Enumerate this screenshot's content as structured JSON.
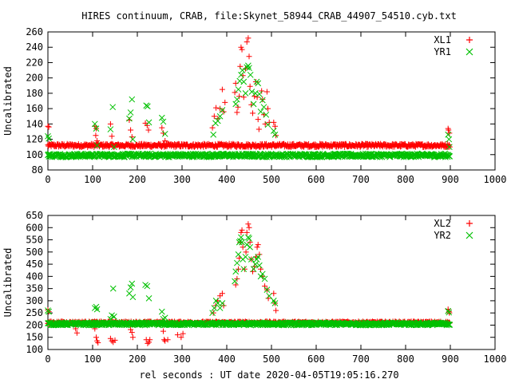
{
  "title": "HIRES continuum, CRAB, file:Skynet_58944_CRAB_44907_54510.cyb.txt",
  "xlabel": "rel seconds : UT date 2020-04-05T19:05:16.270",
  "colors": {
    "red": "#ff0000",
    "green": "#00c000"
  },
  "chart_data": [
    {
      "type": "scatter",
      "ylabel": "Uncalibrated",
      "xlim": [
        0,
        1000
      ],
      "ylim": [
        80,
        260
      ],
      "xticks": [
        0,
        100,
        200,
        300,
        400,
        500,
        600,
        700,
        800,
        900,
        1000
      ],
      "yticks": [
        80,
        100,
        120,
        140,
        160,
        180,
        200,
        220,
        240,
        260
      ],
      "legend_position": "top-right",
      "series": [
        {
          "name": "XL1",
          "marker": "plus",
          "color": "#ff0000",
          "baseline": 112,
          "points": [
            [
              0,
              137
            ],
            [
              2,
              136
            ],
            [
              105,
              137
            ],
            [
              107,
              125
            ],
            [
              108,
              134
            ],
            [
              110,
              118
            ],
            [
              140,
              140
            ],
            [
              143,
              124
            ],
            [
              147,
              112
            ],
            [
              182,
              145
            ],
            [
              185,
              132
            ],
            [
              188,
              123
            ],
            [
              218,
              141
            ],
            [
              222,
              138
            ],
            [
              225,
              132
            ],
            [
              255,
              135
            ],
            [
              258,
              128
            ],
            [
              262,
              118
            ],
            [
              368,
              135
            ],
            [
              372,
              150
            ],
            [
              376,
              161
            ],
            [
              380,
              147
            ],
            [
              385,
              160
            ],
            [
              390,
              185
            ],
            [
              393,
              156
            ],
            [
              396,
              168
            ],
            [
              418,
              181
            ],
            [
              420,
              193
            ],
            [
              423,
              155
            ],
            [
              425,
              162
            ],
            [
              428,
              176
            ],
            [
              430,
              215
            ],
            [
              432,
              240
            ],
            [
              434,
              237
            ],
            [
              436,
              203
            ],
            [
              438,
              175
            ],
            [
              442,
              212
            ],
            [
              445,
              247
            ],
            [
              448,
              252
            ],
            [
              450,
              228
            ],
            [
              452,
              189
            ],
            [
              455,
              165
            ],
            [
              458,
              154
            ],
            [
              462,
              176
            ],
            [
              465,
              195
            ],
            [
              468,
              175
            ],
            [
              470,
              146
            ],
            [
              472,
              133
            ],
            [
              478,
              183
            ],
            [
              480,
              172
            ],
            [
              483,
              152
            ],
            [
              486,
              140
            ],
            [
              490,
              182
            ],
            [
              492,
              160
            ],
            [
              495,
              142
            ],
            [
              505,
              142
            ],
            [
              508,
              137
            ],
            [
              510,
              125
            ],
            [
              895,
              134
            ],
            [
              896,
              132
            ],
            [
              898,
              128
            ]
          ]
        },
        {
          "name": "YR1",
          "marker": "cross",
          "color": "#00c000",
          "baseline": 99,
          "points": [
            [
              0,
              124
            ],
            [
              2,
              121
            ],
            [
              105,
              140
            ],
            [
              108,
              134
            ],
            [
              110,
              112
            ],
            [
              140,
              133
            ],
            [
              145,
              162
            ],
            [
              148,
              110
            ],
            [
              182,
              147
            ],
            [
              185,
              155
            ],
            [
              188,
              172
            ],
            [
              190,
              120
            ],
            [
              220,
              164
            ],
            [
              223,
              163
            ],
            [
              226,
              142
            ],
            [
              255,
              148
            ],
            [
              258,
              143
            ],
            [
              262,
              127
            ],
            [
              370,
              126
            ],
            [
              375,
              141
            ],
            [
              380,
              144
            ],
            [
              385,
              150
            ],
            [
              390,
              158
            ],
            [
              420,
              166
            ],
            [
              423,
              172
            ],
            [
              426,
              185
            ],
            [
              429,
              196
            ],
            [
              432,
              204
            ],
            [
              435,
              210
            ],
            [
              438,
              195
            ],
            [
              442,
              180
            ],
            [
              445,
              214
            ],
            [
              448,
              216
            ],
            [
              450,
              213
            ],
            [
              453,
              204
            ],
            [
              456,
              182
            ],
            [
              460,
              166
            ],
            [
              464,
              180
            ],
            [
              467,
              195
            ],
            [
              470,
              193
            ],
            [
              473,
              179
            ],
            [
              476,
              156
            ],
            [
              480,
              171
            ],
            [
              483,
              162
            ],
            [
              488,
              152
            ],
            [
              492,
              139
            ],
            [
              505,
              131
            ],
            [
              508,
              126
            ],
            [
              895,
              126
            ],
            [
              897,
              120
            ],
            [
              898,
              110
            ]
          ]
        }
      ]
    },
    {
      "type": "scatter",
      "ylabel": "Uncalibrated",
      "xlim": [
        0,
        1000
      ],
      "ylim": [
        100,
        650
      ],
      "xticks": [
        0,
        100,
        200,
        300,
        400,
        500,
        600,
        700,
        800,
        900,
        1000
      ],
      "yticks": [
        100,
        150,
        200,
        250,
        300,
        350,
        400,
        450,
        500,
        550,
        600,
        650
      ],
      "legend_position": "top-right",
      "series": [
        {
          "name": "XL2",
          "marker": "plus",
          "color": "#ff0000",
          "baseline": 210,
          "points": [
            [
              0,
              262
            ],
            [
              2,
              255
            ],
            [
              62,
              185
            ],
            [
              65,
              168
            ],
            [
              105,
              185
            ],
            [
              108,
              150
            ],
            [
              110,
              135
            ],
            [
              112,
              128
            ],
            [
              140,
              145
            ],
            [
              143,
              135
            ],
            [
              146,
              130
            ],
            [
              150,
              138
            ],
            [
              185,
              182
            ],
            [
              188,
              170
            ],
            [
              190,
              150
            ],
            [
              220,
              140
            ],
            [
              223,
              125
            ],
            [
              226,
              130
            ],
            [
              228,
              140
            ],
            [
              258,
              175
            ],
            [
              260,
              140
            ],
            [
              262,
              135
            ],
            [
              268,
              140
            ],
            [
              290,
              160
            ],
            [
              298,
              150
            ],
            [
              302,
              165
            ],
            [
              370,
              250
            ],
            [
              375,
              280
            ],
            [
              380,
              300
            ],
            [
              385,
              320
            ],
            [
              390,
              330
            ],
            [
              393,
              280
            ],
            [
              420,
              365
            ],
            [
              423,
              390
            ],
            [
              426,
              430
            ],
            [
              428,
              475
            ],
            [
              430,
              540
            ],
            [
              432,
              580
            ],
            [
              434,
              590
            ],
            [
              436,
              520
            ],
            [
              440,
              430
            ],
            [
              443,
              500
            ],
            [
              445,
              580
            ],
            [
              448,
              615
            ],
            [
              450,
              600
            ],
            [
              452,
              540
            ],
            [
              455,
              470
            ],
            [
              458,
              420
            ],
            [
              462,
              440
            ],
            [
              465,
              480
            ],
            [
              468,
              520
            ],
            [
              470,
              530
            ],
            [
              473,
              490
            ],
            [
              476,
              430
            ],
            [
              480,
              400
            ],
            [
              485,
              360
            ],
            [
              490,
              345
            ],
            [
              493,
              310
            ],
            [
              505,
              330
            ],
            [
              508,
              290
            ],
            [
              510,
              260
            ],
            [
              895,
              265
            ],
            [
              897,
              255
            ],
            [
              898,
              250
            ]
          ]
        },
        {
          "name": "YR2",
          "marker": "cross",
          "color": "#00c000",
          "baseline": 205,
          "points": [
            [
              0,
              260
            ],
            [
              2,
              255
            ],
            [
              105,
              270
            ],
            [
              108,
              275
            ],
            [
              110,
              265
            ],
            [
              140,
              225
            ],
            [
              143,
              240
            ],
            [
              146,
              350
            ],
            [
              148,
              235
            ],
            [
              182,
              330
            ],
            [
              185,
              355
            ],
            [
              188,
              370
            ],
            [
              190,
              315
            ],
            [
              218,
              365
            ],
            [
              222,
              360
            ],
            [
              226,
              310
            ],
            [
              255,
              255
            ],
            [
              258,
              225
            ],
            [
              262,
              230
            ],
            [
              368,
              250
            ],
            [
              372,
              270
            ],
            [
              376,
              300
            ],
            [
              380,
              290
            ],
            [
              385,
              270
            ],
            [
              390,
              290
            ],
            [
              418,
              380
            ],
            [
              420,
              420
            ],
            [
              423,
              455
            ],
            [
              426,
              490
            ],
            [
              428,
              540
            ],
            [
              430,
              545
            ],
            [
              432,
              560
            ],
            [
              434,
              540
            ],
            [
              436,
              470
            ],
            [
              438,
              430
            ],
            [
              442,
              480
            ],
            [
              445,
              530
            ],
            [
              448,
              560
            ],
            [
              450,
              555
            ],
            [
              452,
              520
            ],
            [
              455,
              470
            ],
            [
              460,
              430
            ],
            [
              464,
              450
            ],
            [
              467,
              470
            ],
            [
              470,
              480
            ],
            [
              473,
              445
            ],
            [
              476,
              400
            ],
            [
              480,
              410
            ],
            [
              485,
              390
            ],
            [
              490,
              345
            ],
            [
              495,
              320
            ],
            [
              505,
              300
            ],
            [
              508,
              290
            ],
            [
              895,
              258
            ],
            [
              897,
              252
            ]
          ]
        }
      ]
    }
  ]
}
